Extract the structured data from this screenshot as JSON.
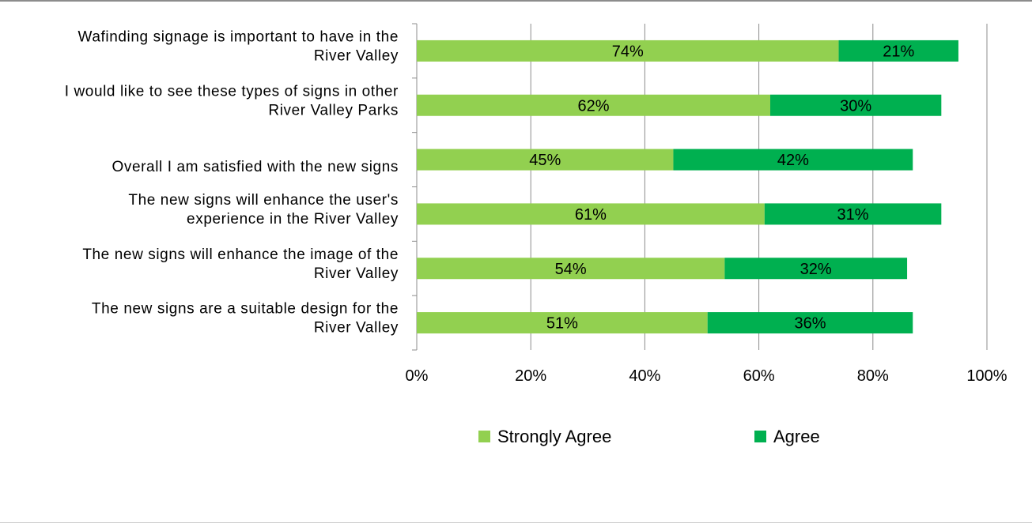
{
  "chart_data": {
    "type": "bar",
    "orientation": "horizontal",
    "stacked": true,
    "categories": [
      [
        "Wafinding signage is important to have in the",
        "River Valley"
      ],
      [
        "I would like to see these types of signs in other",
        "River Valley Parks"
      ],
      [
        "Overall I am satisfied with the new signs"
      ],
      [
        "The new signs will enhance the user's",
        "experience in the River Valley"
      ],
      [
        "The new signs will enhance the image of the",
        "River Valley"
      ],
      [
        "The new signs are a suitable design for the",
        "River Valley"
      ]
    ],
    "series": [
      {
        "name": "Strongly Agree",
        "color": "#92d050",
        "values": [
          74,
          62,
          45,
          61,
          54,
          51
        ],
        "labels": [
          "74%",
          "62%",
          "45%",
          "61%",
          "54%",
          "51%"
        ]
      },
      {
        "name": "Agree",
        "color": "#00b050",
        "values": [
          21,
          30,
          42,
          31,
          32,
          36
        ],
        "labels": [
          "21%",
          "30%",
          "42%",
          "31%",
          "32%",
          "36%"
        ]
      }
    ],
    "xlim": [
      0,
      100
    ],
    "x_ticks": [
      "0%",
      "20%",
      "40%",
      "60%",
      "80%",
      "100%"
    ],
    "grid": true,
    "legend_position": "bottom"
  }
}
